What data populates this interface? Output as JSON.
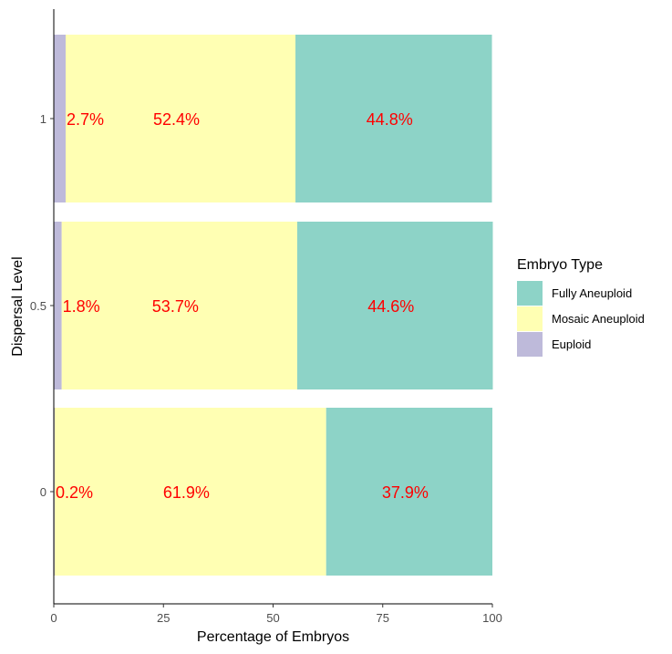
{
  "chart_data": {
    "type": "bar",
    "orientation": "horizontal",
    "stacked": true,
    "xlabel": "Percentage of Embryos",
    "ylabel": "Dispersal Level",
    "xlim": [
      0,
      100
    ],
    "xticks": [
      0,
      25,
      50,
      75,
      100
    ],
    "categories": [
      "1",
      "0.5",
      "0"
    ],
    "series": [
      {
        "name": "Euploid",
        "color": "#bebada",
        "values": [
          2.7,
          1.8,
          0.2
        ],
        "labels": [
          "2.7%",
          "1.8%",
          "0.2%"
        ]
      },
      {
        "name": "Mosaic Aneuploid",
        "color": "#ffffb3",
        "values": [
          52.4,
          53.7,
          61.9
        ],
        "labels": [
          "52.4%",
          "53.7%",
          "61.9%"
        ]
      },
      {
        "name": "Fully Aneuploid",
        "color": "#8dd3c7",
        "values": [
          44.8,
          44.6,
          37.9
        ],
        "labels": [
          "44.8%",
          "44.6%",
          "37.9%"
        ]
      }
    ],
    "label_color": "#ff0000",
    "grid": false,
    "legend": {
      "title": "Embryo Type",
      "position": "right",
      "entries": [
        {
          "name": "Fully Aneuploid",
          "color": "#8dd3c7"
        },
        {
          "name": "Mosaic Aneuploid",
          "color": "#ffffb3"
        },
        {
          "name": "Euploid",
          "color": "#bebada"
        }
      ]
    }
  }
}
